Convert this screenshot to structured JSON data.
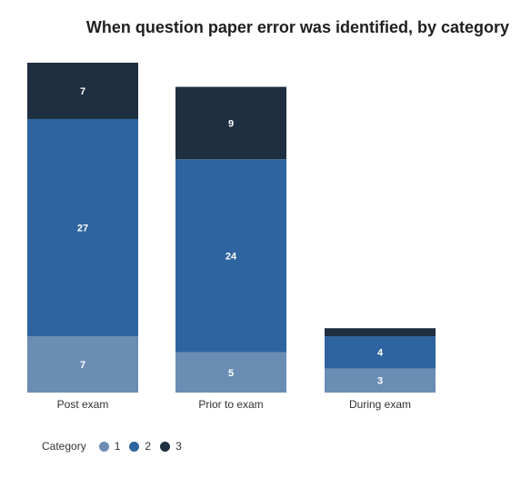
{
  "chart_data": {
    "type": "bar",
    "stacked": true,
    "title": "When question paper error was identified, by category",
    "xlabel": "",
    "ylabel": "",
    "categories": [
      "Post exam",
      "Prior to exam",
      "During exam"
    ],
    "series": [
      {
        "name": "1",
        "color": "#6b8db4",
        "values": [
          7,
          5,
          3
        ]
      },
      {
        "name": "2",
        "color": "#2e64a0",
        "values": [
          27,
          24,
          4
        ]
      },
      {
        "name": "3",
        "color": "#1f2f42",
        "values": [
          7,
          9,
          1
        ]
      }
    ],
    "data_labels": [
      [
        "7",
        "5",
        "3"
      ],
      [
        "27",
        "24",
        "4"
      ],
      [
        "7",
        "9",
        ""
      ]
    ],
    "ylim": [
      0,
      41
    ],
    "grid": false,
    "legend": {
      "title": "Category",
      "placement": "bottom-left"
    }
  }
}
